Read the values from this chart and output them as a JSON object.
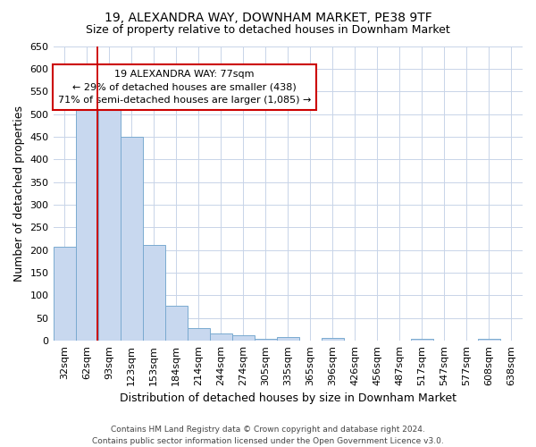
{
  "title": "19, ALEXANDRA WAY, DOWNHAM MARKET, PE38 9TF",
  "subtitle": "Size of property relative to detached houses in Downham Market",
  "xlabel": "Distribution of detached houses by size in Downham Market",
  "ylabel": "Number of detached properties",
  "footer_line1": "Contains HM Land Registry data © Crown copyright and database right 2024.",
  "footer_line2": "Contains public sector information licensed under the Open Government Licence v3.0.",
  "categories": [
    "32sqm",
    "62sqm",
    "93sqm",
    "123sqm",
    "153sqm",
    "184sqm",
    "214sqm",
    "244sqm",
    "274sqm",
    "305sqm",
    "335sqm",
    "365sqm",
    "396sqm",
    "426sqm",
    "456sqm",
    "487sqm",
    "517sqm",
    "547sqm",
    "577sqm",
    "608sqm",
    "638sqm"
  ],
  "values": [
    207,
    530,
    530,
    450,
    212,
    78,
    27,
    17,
    12,
    5,
    8,
    0,
    6,
    0,
    0,
    0,
    5,
    0,
    0,
    5,
    0
  ],
  "bar_color": "#c8d8ef",
  "bar_edge_color": "#7aaad0",
  "ylim": [
    0,
    650
  ],
  "yticks": [
    0,
    50,
    100,
    150,
    200,
    250,
    300,
    350,
    400,
    450,
    500,
    550,
    600,
    650
  ],
  "grid_color": "#c8d4e8",
  "background_color": "#ffffff",
  "annotation_line1": "19 ALEXANDRA WAY: 77sqm",
  "annotation_line2": "← 29% of detached houses are smaller (438)",
  "annotation_line3": "71% of semi-detached houses are larger (1,085) →",
  "vline_color": "#cc0000",
  "title_fontsize": 10,
  "subtitle_fontsize": 9,
  "label_fontsize": 9,
  "tick_fontsize": 8,
  "annotation_fontsize": 8,
  "footer_fontsize": 6.5
}
